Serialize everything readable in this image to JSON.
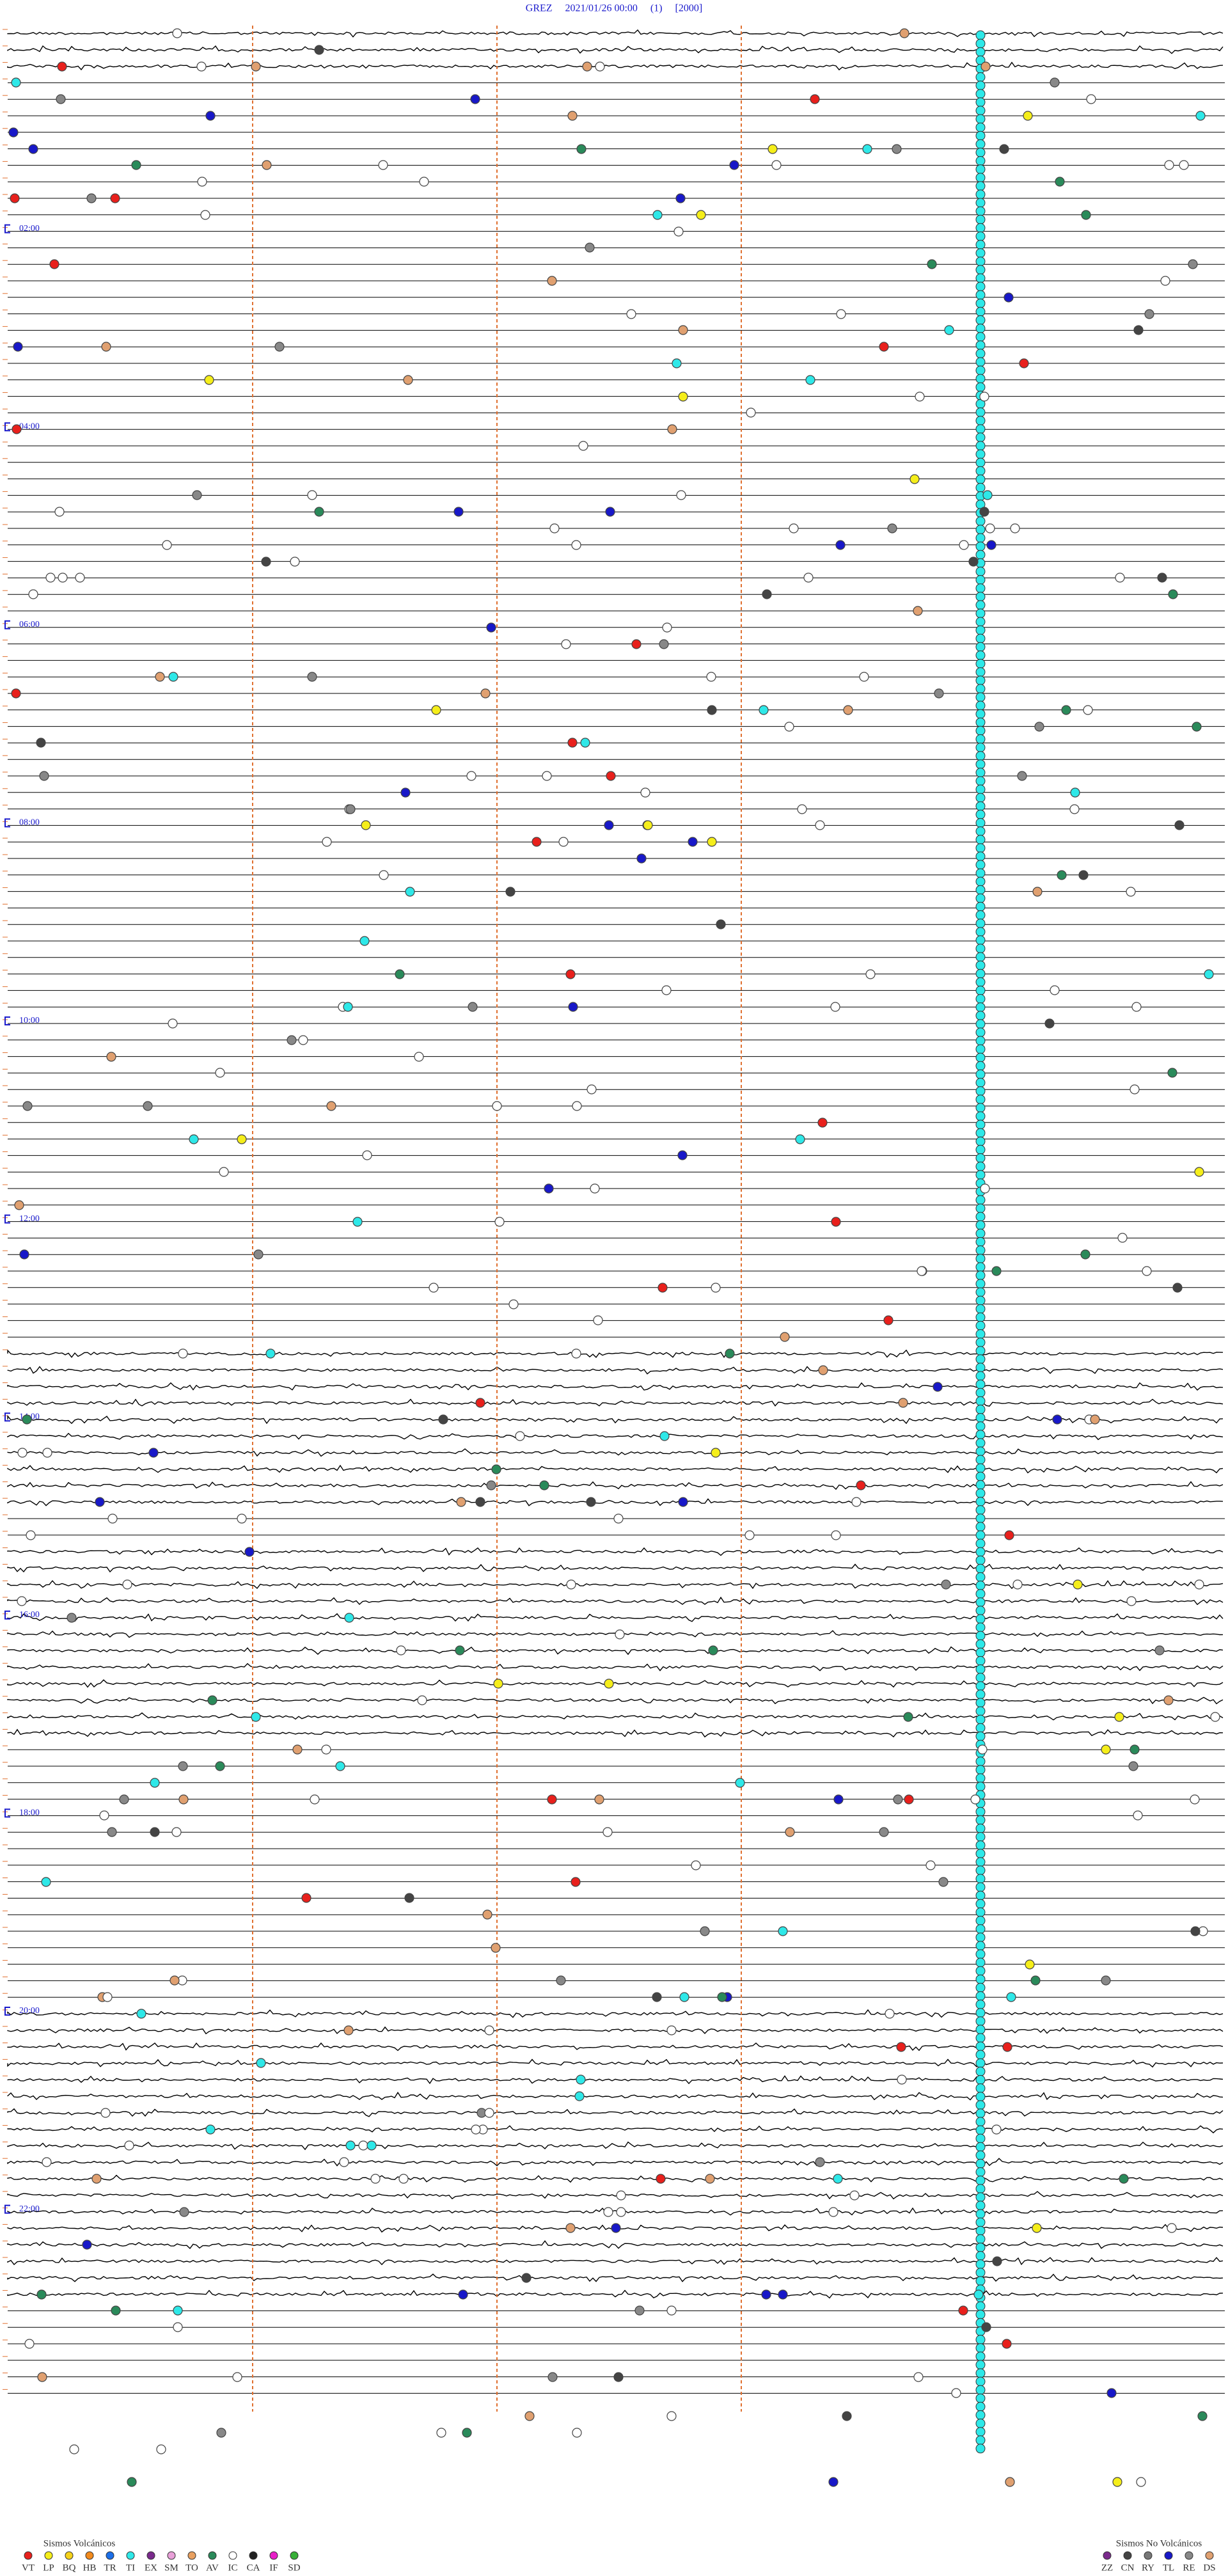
{
  "header": {
    "title": "GREZ     2021/01/26 00:00     (1)     [2000]"
  },
  "hour_labels": [
    "02:00",
    "04:00",
    "06:00",
    "08:00",
    "10:00",
    "12:00",
    "14:00",
    "16:00",
    "18:00",
    "20:00",
    "22:00"
  ],
  "legend_volcanic": {
    "title": "Sismos Volcánicos",
    "items": [
      {
        "code": "VT",
        "color": "#e8201c"
      },
      {
        "code": "LP",
        "color": "#f5ee1a"
      },
      {
        "code": "BQ",
        "color": "#f5d21a"
      },
      {
        "code": "HB",
        "color": "#f28a1c"
      },
      {
        "code": "TR",
        "color": "#1c6fe8"
      },
      {
        "code": "TI",
        "color": "#2ee8e8"
      },
      {
        "code": "EX",
        "color": "#7a2a8c"
      },
      {
        "code": "SM",
        "color": "#e8a0d8"
      },
      {
        "code": "TO",
        "color": "#e8a060"
      },
      {
        "code": "AV",
        "color": "#2a8a5a"
      },
      {
        "code": "IC",
        "color": "#ffffff"
      },
      {
        "code": "CA",
        "color": "#222222"
      },
      {
        "code": "IF",
        "color": "#e820c8"
      },
      {
        "code": "SD",
        "color": "#38b038"
      }
    ]
  },
  "legend_non_volcanic": {
    "title": "Sismos No Volcánicos",
    "items": [
      {
        "code": "ZZ",
        "color": "#7a2a8c"
      },
      {
        "code": "CN",
        "color": "#444444"
      },
      {
        "code": "RY",
        "color": "#777777"
      },
      {
        "code": "TL",
        "color": "#1818c8"
      },
      {
        "code": "RE",
        "color": "#888888"
      },
      {
        "code": "DS",
        "color": "#e0a070"
      }
    ]
  }
}
